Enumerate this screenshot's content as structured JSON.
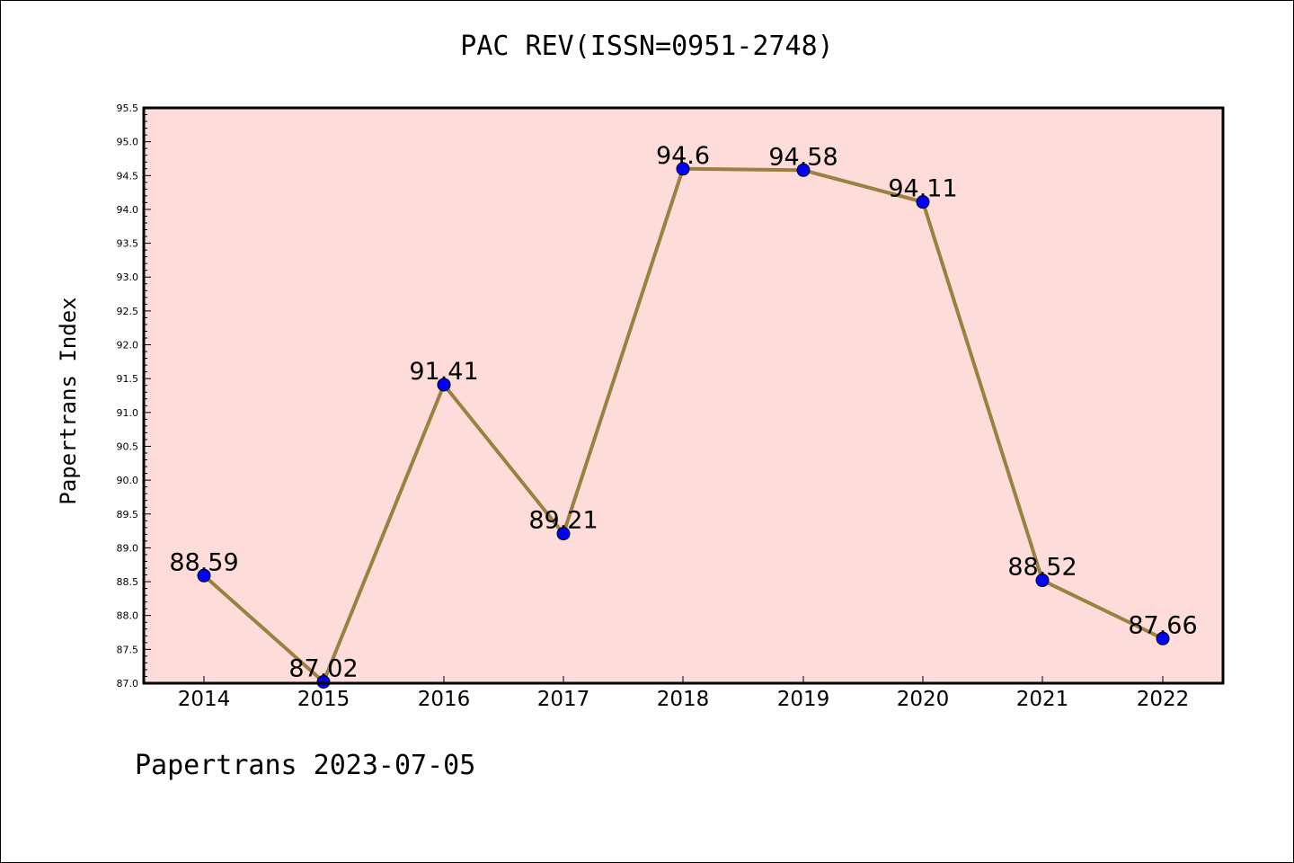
{
  "chart_data": {
    "type": "line",
    "title": "PAC REV(ISSN=0951-2748)",
    "ylabel": "Papertrans Index",
    "xlabel": "",
    "categories": [
      "2014",
      "2015",
      "2016",
      "2017",
      "2018",
      "2019",
      "2020",
      "2021",
      "2022"
    ],
    "series": [
      {
        "values": [
          88.59,
          87.02,
          91.41,
          89.21,
          94.6,
          94.58,
          94.11,
          88.52,
          87.66
        ]
      }
    ],
    "data_labels": [
      "88.59",
      "87.02",
      "91.41",
      "89.21",
      "94.6",
      "94.58",
      "94.11",
      "88.52",
      "87.66"
    ],
    "ylim": [
      87.0,
      95.5
    ],
    "yticks": [
      "87.0",
      "87.5",
      "88.0",
      "88.5",
      "89.0",
      "89.5",
      "90.0",
      "90.5",
      "91.0",
      "91.5",
      "92.0",
      "92.5",
      "93.0",
      "93.5",
      "94.0",
      "94.5",
      "95.0",
      "95.5"
    ],
    "grid": false,
    "colors": {
      "plot_background": "#fddcda",
      "line": "#9b8040",
      "marker": "#0000ff"
    }
  },
  "footer": "Papertrans 2023-07-05"
}
